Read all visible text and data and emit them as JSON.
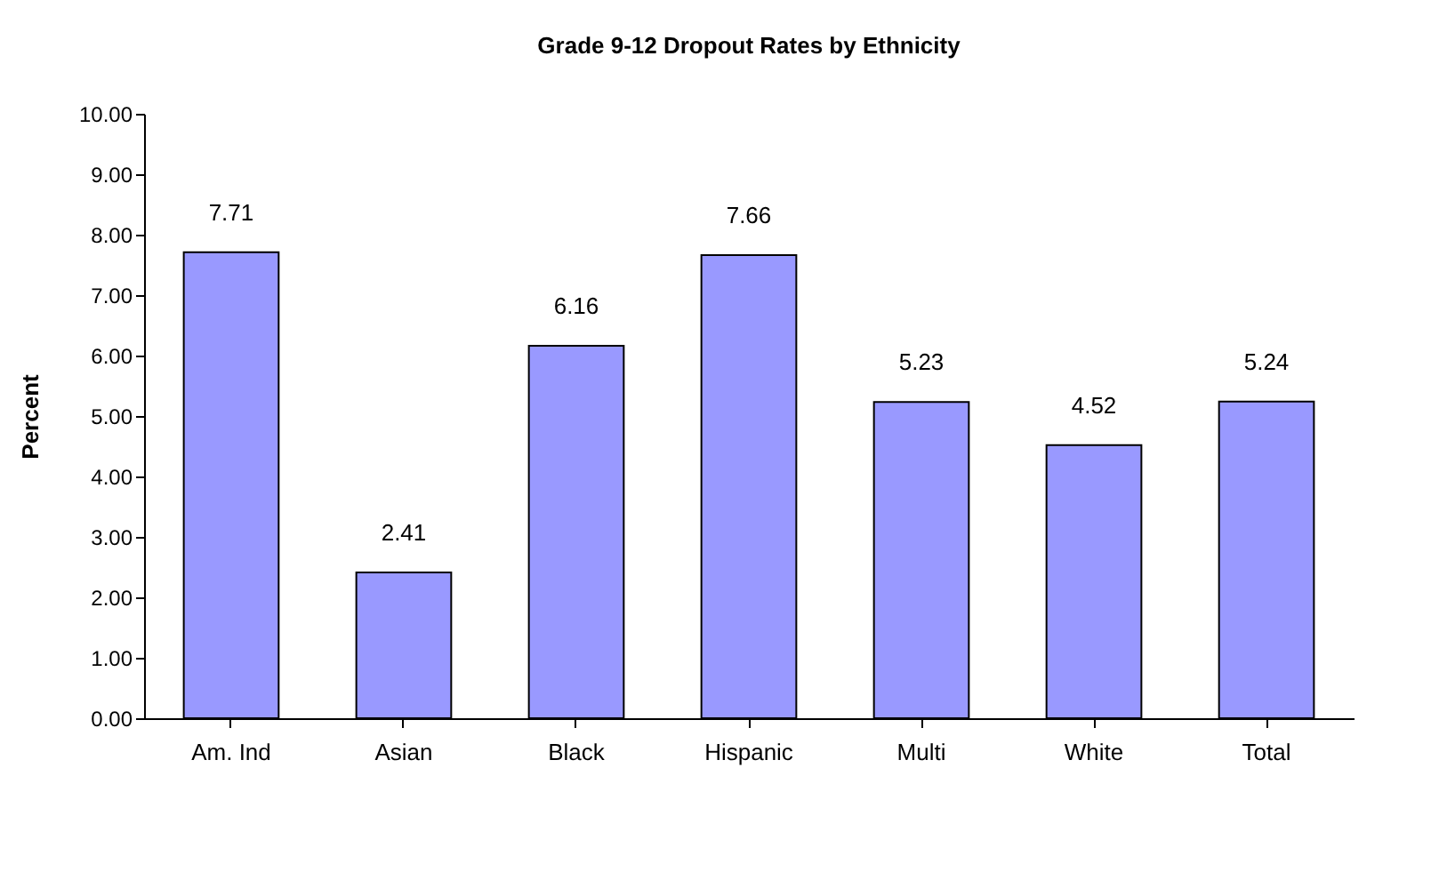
{
  "chart_data": {
    "type": "bar",
    "title": "Grade 9-12 Dropout Rates by Ethnicity",
    "ylabel": "Percent",
    "categories": [
      "Am. Ind",
      "Asian",
      "Black",
      "Hispanic",
      "Multi",
      "White",
      "Total"
    ],
    "values": [
      7.71,
      2.41,
      6.16,
      7.66,
      5.23,
      4.52,
      5.24
    ],
    "color": "#9999ff",
    "ylim": [
      0,
      10
    ],
    "yticks": [
      {
        "value": 0,
        "label": "0.00"
      },
      {
        "value": 1,
        "label": "1.00"
      },
      {
        "value": 2,
        "label": "2.00"
      },
      {
        "value": 3,
        "label": "3.00"
      },
      {
        "value": 4,
        "label": "4.00"
      },
      {
        "value": 5,
        "label": "5.00"
      },
      {
        "value": 6,
        "label": "6.00"
      },
      {
        "value": 7,
        "label": "7.00"
      },
      {
        "value": 8,
        "label": "8.00"
      },
      {
        "value": 9,
        "label": "9.00"
      },
      {
        "value": 10,
        "label": "10.00"
      }
    ],
    "data_labels": true,
    "grid": false
  }
}
